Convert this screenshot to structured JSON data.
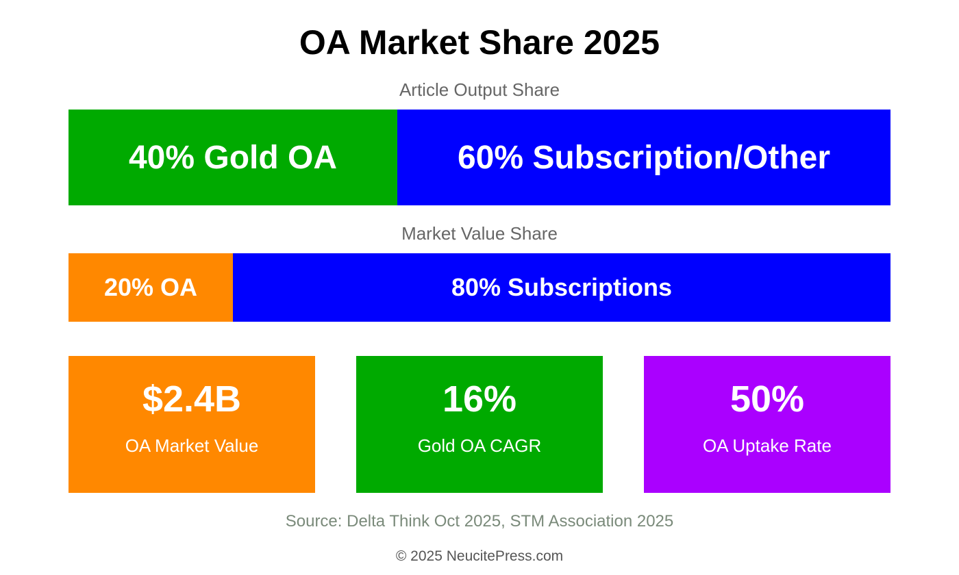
{
  "header": {
    "title": "OA Market Share 2025"
  },
  "share_bars": [
    {
      "title": "Article Output Share",
      "segments": [
        {
          "value": 40,
          "label": "40% Gold OA",
          "color": "#00aa00"
        },
        {
          "value": 60,
          "label": "60% Subscription/Other",
          "color": "#0000ff"
        }
      ]
    },
    {
      "title": "Market Value Share",
      "segments": [
        {
          "value": 20,
          "label": "20% OA",
          "color": "#ff8800"
        },
        {
          "value": 80,
          "label": "80% Subscriptions",
          "color": "#0000ff"
        }
      ]
    }
  ],
  "cards": [
    {
      "value": "$2.4B",
      "label": "OA Market Value",
      "color": "#ff8800"
    },
    {
      "value": "16%",
      "label": "Gold OA CAGR",
      "color": "#00aa00"
    },
    {
      "value": "50%",
      "label": "OA Uptake Rate",
      "color": "#aa00ff"
    }
  ],
  "footer": {
    "source": "Source: Delta Think Oct 2025, STM Association 2025",
    "copyright": "© 2025 NeucitePress.com"
  }
}
